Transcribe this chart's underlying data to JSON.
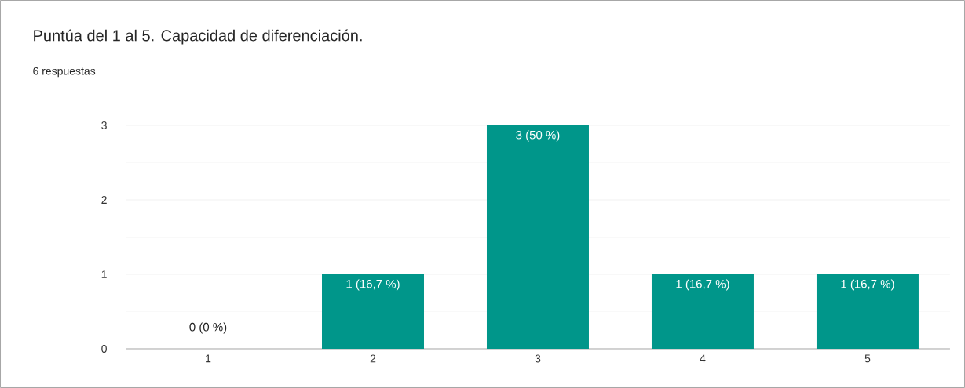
{
  "chart_data": {
    "type": "bar",
    "title": "Puntúa del 1 al 5. Capacidad de diferenciación.",
    "subtitle": "6 respuestas",
    "categories": [
      "1",
      "2",
      "3",
      "4",
      "5"
    ],
    "values": [
      0,
      1,
      3,
      1,
      1
    ],
    "value_labels": [
      "0 (0 %)",
      "1 (16,7 %)",
      "3 (50 %)",
      "1 (16,7 %)",
      "1 (16,7 %)"
    ],
    "color": "#00968a",
    "ylim": [
      0,
      3
    ],
    "yticks": [
      0,
      1,
      2,
      3
    ],
    "grid": "y"
  }
}
